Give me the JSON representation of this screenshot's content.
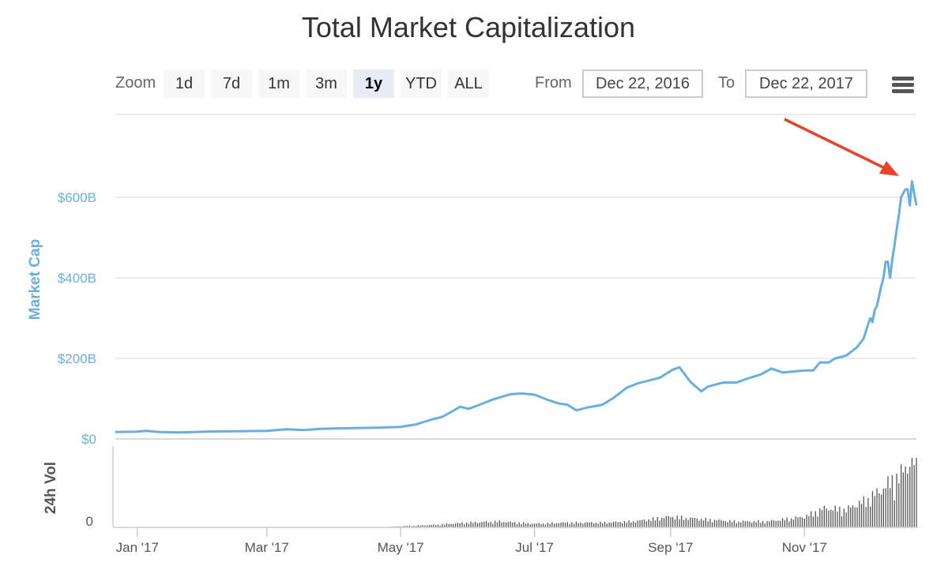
{
  "title": "Total Market Capitalization",
  "zoom": {
    "label": "Zoom",
    "buttons": [
      {
        "label": "1d"
      },
      {
        "label": "7d"
      },
      {
        "label": "1m"
      },
      {
        "label": "3m"
      },
      {
        "label": "1y",
        "active": true
      },
      {
        "label": "YTD"
      },
      {
        "label": "ALL"
      }
    ]
  },
  "range": {
    "from_label": "From",
    "from_value": "Dec 22, 2016",
    "to_label": "To",
    "to_value": "Dec 22, 2017"
  },
  "icons": {
    "menu": "hamburger-menu-icon",
    "annotation": "red-arrow-icon"
  },
  "colors": {
    "line": "#6aaee0",
    "axis_label": "#6aaee0",
    "volume_bar": "#555555",
    "arrow": "#e8432a",
    "grid": "#e6e6e6"
  },
  "chart_data": {
    "type": "line",
    "title": "Total Market Capitalization",
    "x_range": [
      "2016-12-22",
      "2017-12-22"
    ],
    "x_ticks": [
      "Jan '17",
      "Mar '17",
      "May '17",
      "Jul '17",
      "Sep '17",
      "Nov '17"
    ],
    "x_tick_dates": [
      "2017-01-01",
      "2017-03-01",
      "2017-05-01",
      "2017-07-01",
      "2017-09-01",
      "2017-11-01"
    ],
    "grid": true,
    "panels": [
      {
        "name": "market_cap",
        "ylabel": "Market Cap",
        "ylim": [
          0,
          800
        ],
        "y_ticks": [
          0,
          200,
          400,
          600
        ],
        "y_tick_labels": [
          "$0",
          "$200B",
          "$400B",
          "$600B"
        ],
        "series": [
          {
            "unit": "billions USD",
            "x": [
              "2016-12-22",
              "2017-01-01",
              "2017-01-05",
              "2017-01-11",
              "2017-01-20",
              "2017-02-01",
              "2017-02-15",
              "2017-03-01",
              "2017-03-10",
              "2017-03-18",
              "2017-03-25",
              "2017-04-01",
              "2017-04-10",
              "2017-04-20",
              "2017-05-01",
              "2017-05-08",
              "2017-05-15",
              "2017-05-20",
              "2017-05-25",
              "2017-05-28",
              "2017-06-01",
              "2017-06-06",
              "2017-06-12",
              "2017-06-20",
              "2017-06-25",
              "2017-07-01",
              "2017-07-07",
              "2017-07-12",
              "2017-07-16",
              "2017-07-20",
              "2017-07-25",
              "2017-08-01",
              "2017-08-06",
              "2017-08-12",
              "2017-08-17",
              "2017-08-22",
              "2017-08-27",
              "2017-09-02",
              "2017-09-05",
              "2017-09-10",
              "2017-09-15",
              "2017-09-18",
              "2017-09-25",
              "2017-10-01",
              "2017-10-06",
              "2017-10-12",
              "2017-10-17",
              "2017-10-22",
              "2017-11-01",
              "2017-11-05",
              "2017-11-08",
              "2017-11-12",
              "2017-11-15",
              "2017-11-20",
              "2017-11-25",
              "2017-11-28",
              "2017-11-30",
              "2017-12-01",
              "2017-12-02",
              "2017-12-03",
              "2017-12-04",
              "2017-12-06",
              "2017-12-07",
              "2017-12-08",
              "2017-12-09",
              "2017-12-10",
              "2017-12-11",
              "2017-12-12",
              "2017-12-13",
              "2017-12-14",
              "2017-12-15",
              "2017-12-16",
              "2017-12-17",
              "2017-12-18",
              "2017-12-19",
              "2017-12-20",
              "2017-12-21",
              "2017-12-22"
            ],
            "y": [
              17,
              18,
              20,
              17,
              16,
              18,
              19,
              20,
              24,
              22,
              25,
              26,
              27,
              28,
              30,
              36,
              48,
              55,
              70,
              80,
              75,
              85,
              98,
              111,
              113,
              110,
              97,
              88,
              85,
              71,
              78,
              85,
              102,
              127,
              138,
              145,
              152,
              172,
              178,
              142,
              118,
              130,
              140,
              140,
              150,
              160,
              175,
              165,
              170,
              170,
              190,
              190,
              200,
              207,
              228,
              250,
              285,
              300,
              290,
              320,
              330,
              380,
              400,
              440,
              440,
              400,
              445,
              480,
              520,
              555,
              600,
              610,
              620,
              620,
              580,
              640,
              610,
              580
            ]
          }
        ]
      },
      {
        "name": "volume",
        "ylabel": "24h Vol",
        "y_ticks": [
          0
        ],
        "y_tick_labels": [
          "0"
        ],
        "series": [
          {
            "unit": "billions USD",
            "x": [
              "2017-04-25",
              "2017-05-15",
              "2017-06-01",
              "2017-06-15",
              "2017-07-01",
              "2017-07-15",
              "2017-08-01",
              "2017-08-15",
              "2017-09-01",
              "2017-09-15",
              "2017-10-01",
              "2017-10-15",
              "2017-11-01",
              "2017-11-10",
              "2017-11-20",
              "2017-11-28",
              "2017-12-05",
              "2017-12-10",
              "2017-12-15",
              "2017-12-20",
              "2017-12-22"
            ],
            "y": [
              0.5,
              2,
              4,
              5,
              3,
              4,
              4,
              5,
              9,
              7,
              5,
              5,
              9,
              16,
              15,
              22,
              30,
              38,
              45,
              58,
              52
            ]
          }
        ]
      }
    ],
    "annotations": [
      {
        "type": "arrow",
        "points_to": "peak"
      }
    ]
  }
}
